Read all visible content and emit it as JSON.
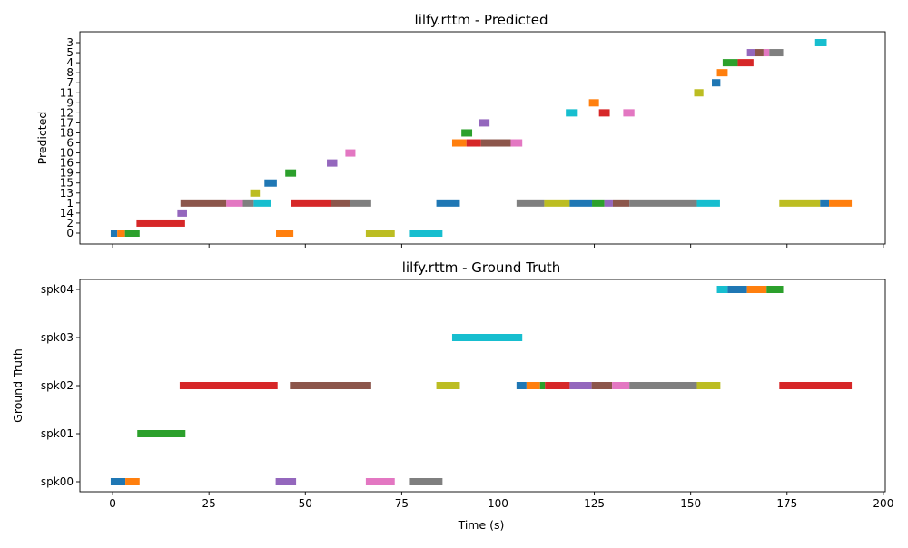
{
  "chart_data": [
    {
      "type": "timeline",
      "title": "lilfy.rttm - Predicted",
      "xlabel": "",
      "ylabel": "Predicted",
      "xlim": [
        -8.5,
        200.5
      ],
      "xticks": [
        0,
        25,
        50,
        75,
        100,
        125,
        150,
        175,
        200
      ],
      "show_xticklabels": false,
      "categories": [
        "0",
        "2",
        "14",
        "1",
        "13",
        "15",
        "19",
        "16",
        "10",
        "6",
        "18",
        "17",
        "12",
        "9",
        "11",
        "7",
        "8",
        "4",
        "5",
        "3"
      ],
      "segments": [
        {
          "label": "0",
          "start": -0.5,
          "end": 1.2,
          "color": "#1f77b4"
        },
        {
          "label": "0",
          "start": 1.2,
          "end": 3.2,
          "color": "#ff7f0e"
        },
        {
          "label": "0",
          "start": 3.2,
          "end": 7.0,
          "color": "#2ca02c"
        },
        {
          "label": "2",
          "start": 6.2,
          "end": 18.8,
          "color": "#d62728"
        },
        {
          "label": "14",
          "start": 16.8,
          "end": 19.3,
          "color": "#9467bd"
        },
        {
          "label": "1",
          "start": 17.6,
          "end": 29.5,
          "color": "#8c564b"
        },
        {
          "label": "1",
          "start": 29.5,
          "end": 33.8,
          "color": "#e377c2"
        },
        {
          "label": "1",
          "start": 33.8,
          "end": 36.6,
          "color": "#7f7f7f"
        },
        {
          "label": "13",
          "start": 35.7,
          "end": 38.2,
          "color": "#bcbd22"
        },
        {
          "label": "1",
          "start": 36.6,
          "end": 41.2,
          "color": "#17becf"
        },
        {
          "label": "15",
          "start": 39.4,
          "end": 42.6,
          "color": "#1f77b4"
        },
        {
          "label": "0",
          "start": 42.4,
          "end": 46.9,
          "color": "#ff7f0e"
        },
        {
          "label": "19",
          "start": 44.8,
          "end": 47.6,
          "color": "#2ca02c"
        },
        {
          "label": "1",
          "start": 46.4,
          "end": 56.6,
          "color": "#d62728"
        },
        {
          "label": "16",
          "start": 55.6,
          "end": 58.3,
          "color": "#9467bd"
        },
        {
          "label": "1",
          "start": 56.6,
          "end": 61.5,
          "color": "#8c564b"
        },
        {
          "label": "10",
          "start": 60.4,
          "end": 63.0,
          "color": "#e377c2"
        },
        {
          "label": "1",
          "start": 61.5,
          "end": 67.1,
          "color": "#7f7f7f"
        },
        {
          "label": "0",
          "start": 65.7,
          "end": 73.2,
          "color": "#bcbd22"
        },
        {
          "label": "0",
          "start": 76.9,
          "end": 85.6,
          "color": "#17becf"
        },
        {
          "label": "1",
          "start": 84.0,
          "end": 90.1,
          "color": "#1f77b4"
        },
        {
          "label": "6",
          "start": 88.1,
          "end": 91.8,
          "color": "#ff7f0e"
        },
        {
          "label": "18",
          "start": 90.5,
          "end": 93.3,
          "color": "#2ca02c"
        },
        {
          "label": "6",
          "start": 91.8,
          "end": 95.6,
          "color": "#d62728"
        },
        {
          "label": "17",
          "start": 95.0,
          "end": 97.8,
          "color": "#9467bd"
        },
        {
          "label": "6",
          "start": 95.6,
          "end": 103.3,
          "color": "#8c564b"
        },
        {
          "label": "6",
          "start": 103.3,
          "end": 106.3,
          "color": "#e377c2"
        },
        {
          "label": "1",
          "start": 104.8,
          "end": 112.0,
          "color": "#7f7f7f"
        },
        {
          "label": "1",
          "start": 112.0,
          "end": 118.6,
          "color": "#bcbd22"
        },
        {
          "label": "12",
          "start": 117.6,
          "end": 120.7,
          "color": "#17becf"
        },
        {
          "label": "1",
          "start": 118.6,
          "end": 124.4,
          "color": "#1f77b4"
        },
        {
          "label": "9",
          "start": 123.6,
          "end": 126.2,
          "color": "#ff7f0e"
        },
        {
          "label": "1",
          "start": 124.4,
          "end": 127.6,
          "color": "#2ca02c"
        },
        {
          "label": "12",
          "start": 126.2,
          "end": 129.0,
          "color": "#d62728"
        },
        {
          "label": "1",
          "start": 127.6,
          "end": 129.8,
          "color": "#9467bd"
        },
        {
          "label": "1",
          "start": 129.8,
          "end": 134.1,
          "color": "#8c564b"
        },
        {
          "label": "12",
          "start": 132.5,
          "end": 135.4,
          "color": "#e377c2"
        },
        {
          "label": "1",
          "start": 134.1,
          "end": 151.6,
          "color": "#7f7f7f"
        },
        {
          "label": "11",
          "start": 150.9,
          "end": 153.3,
          "color": "#bcbd22"
        },
        {
          "label": "1",
          "start": 151.6,
          "end": 157.6,
          "color": "#17becf"
        },
        {
          "label": "7",
          "start": 155.5,
          "end": 157.7,
          "color": "#1f77b4"
        },
        {
          "label": "8",
          "start": 156.8,
          "end": 159.6,
          "color": "#ff7f0e"
        },
        {
          "label": "4",
          "start": 158.3,
          "end": 162.2,
          "color": "#2ca02c"
        },
        {
          "label": "4",
          "start": 162.2,
          "end": 166.3,
          "color": "#d62728"
        },
        {
          "label": "5",
          "start": 164.6,
          "end": 166.6,
          "color": "#9467bd"
        },
        {
          "label": "5",
          "start": 166.6,
          "end": 168.9,
          "color": "#8c564b"
        },
        {
          "label": "5",
          "start": 168.9,
          "end": 170.4,
          "color": "#e377c2"
        },
        {
          "label": "5",
          "start": 170.4,
          "end": 174.0,
          "color": "#7f7f7f"
        },
        {
          "label": "1",
          "start": 173.0,
          "end": 183.6,
          "color": "#bcbd22"
        },
        {
          "label": "3",
          "start": 182.3,
          "end": 185.3,
          "color": "#17becf"
        },
        {
          "label": "1",
          "start": 183.6,
          "end": 185.9,
          "color": "#1f77b4"
        },
        {
          "label": "1",
          "start": 185.9,
          "end": 191.8,
          "color": "#ff7f0e"
        }
      ]
    },
    {
      "type": "timeline",
      "title": "lilfy.rttm - Ground Truth",
      "xlabel": "Time (s)",
      "ylabel": "Ground Truth",
      "xlim": [
        -8.5,
        200.5
      ],
      "xticks": [
        0,
        25,
        50,
        75,
        100,
        125,
        150,
        175,
        200
      ],
      "show_xticklabels": true,
      "categories": [
        "spk00",
        "spk01",
        "spk02",
        "spk03",
        "spk04"
      ],
      "segments": [
        {
          "label": "spk00",
          "start": -0.5,
          "end": 3.3,
          "color": "#1f77b4"
        },
        {
          "label": "spk00",
          "start": 3.3,
          "end": 7.0,
          "color": "#ff7f0e"
        },
        {
          "label": "spk01",
          "start": 6.4,
          "end": 18.9,
          "color": "#2ca02c"
        },
        {
          "label": "spk02",
          "start": 17.4,
          "end": 42.8,
          "color": "#d62728"
        },
        {
          "label": "spk00",
          "start": 42.3,
          "end": 47.6,
          "color": "#9467bd"
        },
        {
          "label": "spk02",
          "start": 46.0,
          "end": 67.1,
          "color": "#8c564b"
        },
        {
          "label": "spk00",
          "start": 65.7,
          "end": 73.2,
          "color": "#e377c2"
        },
        {
          "label": "spk00",
          "start": 76.9,
          "end": 85.6,
          "color": "#7f7f7f"
        },
        {
          "label": "spk02",
          "start": 84.0,
          "end": 90.1,
          "color": "#bcbd22"
        },
        {
          "label": "spk03",
          "start": 88.1,
          "end": 106.3,
          "color": "#17becf"
        },
        {
          "label": "spk02",
          "start": 104.8,
          "end": 107.4,
          "color": "#1f77b4"
        },
        {
          "label": "spk02",
          "start": 107.4,
          "end": 110.9,
          "color": "#ff7f0e"
        },
        {
          "label": "spk02",
          "start": 110.9,
          "end": 112.2,
          "color": "#2ca02c"
        },
        {
          "label": "spk02",
          "start": 112.2,
          "end": 118.6,
          "color": "#d62728"
        },
        {
          "label": "spk02",
          "start": 118.6,
          "end": 124.3,
          "color": "#9467bd"
        },
        {
          "label": "spk02",
          "start": 124.3,
          "end": 129.6,
          "color": "#8c564b"
        },
        {
          "label": "spk02",
          "start": 129.6,
          "end": 134.1,
          "color": "#e377c2"
        },
        {
          "label": "spk02",
          "start": 134.1,
          "end": 151.6,
          "color": "#7f7f7f"
        },
        {
          "label": "spk02",
          "start": 151.6,
          "end": 157.7,
          "color": "#bcbd22"
        },
        {
          "label": "spk04",
          "start": 156.8,
          "end": 159.6,
          "color": "#17becf"
        },
        {
          "label": "spk04",
          "start": 159.6,
          "end": 164.6,
          "color": "#1f77b4"
        },
        {
          "label": "spk04",
          "start": 164.6,
          "end": 169.7,
          "color": "#ff7f0e"
        },
        {
          "label": "spk04",
          "start": 169.7,
          "end": 174.0,
          "color": "#2ca02c"
        },
        {
          "label": "spk02",
          "start": 173.0,
          "end": 191.8,
          "color": "#d62728"
        }
      ]
    }
  ]
}
